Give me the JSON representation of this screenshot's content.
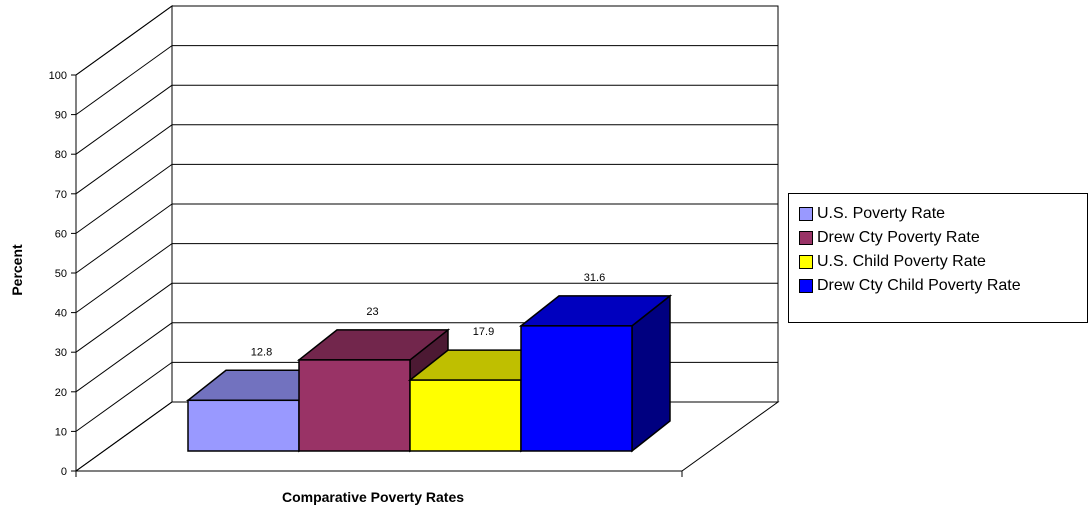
{
  "chart_data": {
    "type": "bar",
    "title": "",
    "xlabel": "Comparative Poverty Rates",
    "ylabel": "Percent",
    "ylim": [
      0,
      100
    ],
    "yticks": [
      0,
      10,
      20,
      30,
      40,
      50,
      60,
      70,
      80,
      90,
      100
    ],
    "grid": true,
    "legend_position": "right",
    "series": [
      {
        "name": "U.S. Poverty Rate",
        "value": 12.8,
        "label": "12.8",
        "color": "#9999ff",
        "top_color": "#7272bf",
        "side_color": "#4c4c80"
      },
      {
        "name": "Drew Cty Poverty Rate",
        "value": 23,
        "label": "23",
        "color": "#993366",
        "top_color": "#72264c",
        "side_color": "#4c1933"
      },
      {
        "name": "U.S. Child Poverty Rate",
        "value": 17.9,
        "label": "17.9",
        "color": "#ffff00",
        "top_color": "#bfbf00",
        "side_color": "#808000"
      },
      {
        "name": "Drew Cty Child Poverty Rate",
        "value": 31.6,
        "label": "31.6",
        "color": "#0000ff",
        "top_color": "#0000bf",
        "side_color": "#000080"
      }
    ]
  }
}
